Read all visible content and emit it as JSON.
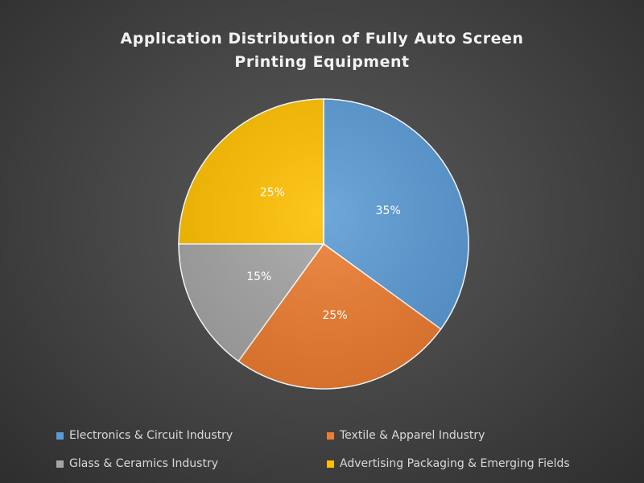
{
  "chart_data": {
    "type": "pie",
    "title": "Application Distribution of Fully Auto Screen Printing Equipment",
    "title_lines": [
      "Application Distribution of Fully Auto Screen",
      "Printing Equipment"
    ],
    "slices": [
      {
        "label": "Electronics & Circuit Industry",
        "value": 35,
        "display": "35%",
        "color": "#5b9bd5"
      },
      {
        "label": "Textile & Apparel Industry",
        "value": 25,
        "display": "25%",
        "color": "#ed7d31"
      },
      {
        "label": "Glass & Ceramics Industry",
        "value": 15,
        "display": "15%",
        "color": "#a5a5a5"
      },
      {
        "label": "Advertising Packaging & Emerging Fields",
        "value": 25,
        "display": "25%",
        "color": "#ffc000"
      }
    ],
    "legend_position": "bottom",
    "start": "top",
    "direction": "clockwise"
  }
}
